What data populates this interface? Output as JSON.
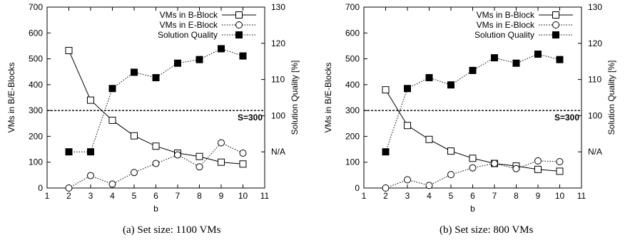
{
  "chart_data": [
    {
      "type": "line",
      "caption": "(a)  Set size: 1100 VMs",
      "xlabel": "b",
      "ylabel": "VMs in B/E-Blocks",
      "y2label": "Solution Quality [%]",
      "xlim": [
        1,
        11
      ],
      "xticks": [
        1,
        2,
        3,
        4,
        5,
        6,
        7,
        8,
        9,
        10,
        11
      ],
      "ylim": [
        0,
        700
      ],
      "yticks": [
        0,
        100,
        200,
        300,
        400,
        500,
        600,
        700
      ],
      "y2lim": [
        80,
        130
      ],
      "y2ticks": [
        100,
        110,
        120,
        130
      ],
      "y2_extra_label": "N/A",
      "y2_extra_value": 90,
      "reference_line": {
        "y": 300,
        "label": "S=300"
      },
      "legend_position": "top-right",
      "series": [
        {
          "name": "VMs in B-Block",
          "axis": "left",
          "marker": "open-square",
          "line": "solid",
          "x": [
            2,
            3,
            4,
            5,
            6,
            7,
            8,
            9,
            10
          ],
          "y": [
            532,
            340,
            262,
            202,
            162,
            135,
            122,
            100,
            93
          ]
        },
        {
          "name": "VMs in E-Block",
          "axis": "left",
          "marker": "open-circle",
          "line": "dotted",
          "x": [
            2,
            3,
            4,
            5,
            6,
            7,
            8,
            9,
            10
          ],
          "y": [
            0,
            48,
            15,
            60,
            95,
            128,
            82,
            175,
            135
          ]
        },
        {
          "name": "Solution Quality",
          "axis": "right",
          "marker": "filled-square",
          "line": "dotted",
          "x": [
            2,
            3,
            4,
            5,
            6,
            7,
            8,
            9,
            10
          ],
          "y": [
            90,
            90,
            107.5,
            112,
            110.5,
            114.5,
            115.5,
            118.5,
            116.5
          ]
        }
      ]
    },
    {
      "type": "line",
      "caption": "(b)  Set size: 800 VMs",
      "xlabel": "b",
      "ylabel": "VMs in B/E-Blocks",
      "y2label": "Solution Quality [%]",
      "xlim": [
        1,
        11
      ],
      "xticks": [
        1,
        2,
        3,
        4,
        5,
        6,
        7,
        8,
        9,
        10,
        11
      ],
      "ylim": [
        0,
        700
      ],
      "yticks": [
        0,
        100,
        200,
        300,
        400,
        500,
        600,
        700
      ],
      "y2lim": [
        80,
        130
      ],
      "y2ticks": [
        100,
        110,
        120,
        130
      ],
      "y2_extra_label": "N/A",
      "y2_extra_value": 90,
      "reference_line": {
        "y": 300,
        "label": "S=300"
      },
      "legend_position": "top-right",
      "series": [
        {
          "name": "VMs in B-Block",
          "axis": "left",
          "marker": "open-square",
          "line": "solid",
          "x": [
            2,
            3,
            4,
            5,
            6,
            7,
            8,
            9,
            10
          ],
          "y": [
            380,
            242,
            188,
            143,
            115,
            95,
            85,
            72,
            65
          ]
        },
        {
          "name": "VMs in E-Block",
          "axis": "left",
          "marker": "open-circle",
          "line": "dotted",
          "x": [
            2,
            3,
            4,
            5,
            6,
            7,
            8,
            9,
            10
          ],
          "y": [
            0,
            32,
            10,
            52,
            78,
            95,
            75,
            105,
            102
          ]
        },
        {
          "name": "Solution Quality",
          "axis": "right",
          "marker": "filled-square",
          "line": "dotted",
          "x": [
            2,
            3,
            4,
            5,
            6,
            7,
            8,
            9,
            10
          ],
          "y": [
            90,
            107.5,
            110.5,
            108.5,
            112.5,
            116,
            114.5,
            117,
            115.5
          ]
        }
      ]
    }
  ]
}
